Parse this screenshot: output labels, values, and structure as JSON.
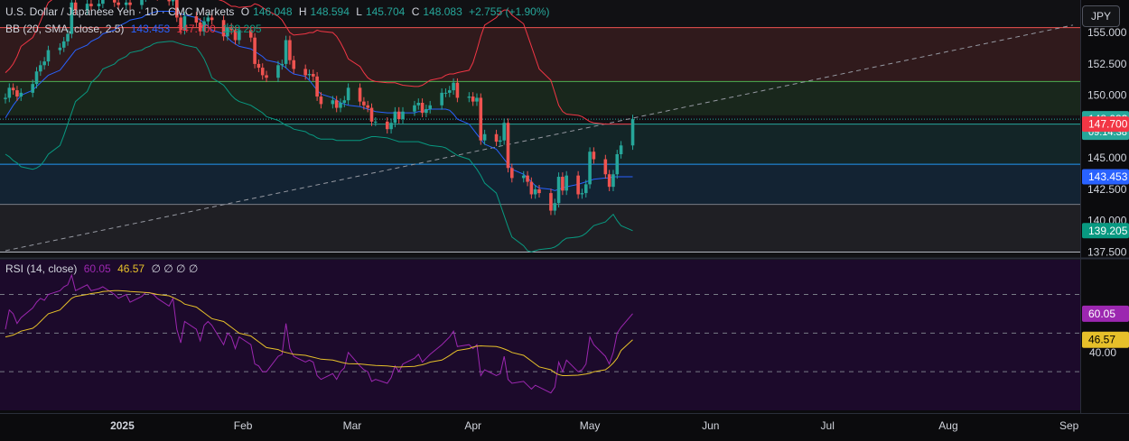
{
  "header": {
    "symbol": "U.S. Dollar / Japanese Yen · 1D · CMC Markets",
    "open_label": "O",
    "open": "146.048",
    "high_label": "H",
    "high": "148.594",
    "low_label": "L",
    "low": "145.704",
    "close_label": "C",
    "close": "148.083",
    "change": "+2.755 (+1.90%)"
  },
  "bb_legend": {
    "label": "BB (20, SMA, close, 2.5)",
    "basis": "143.453",
    "upper": "147.700",
    "lower": "139.205"
  },
  "rsi_legend": {
    "label": "RSI (14, close)",
    "rsi": "60.05",
    "ma": "46.57",
    "extra": "∅ ∅ ∅ ∅"
  },
  "currency": "JPY",
  "colors": {
    "up": "#26a69a",
    "down": "#ef5350",
    "bb_upper": "#f23645",
    "bb_basis": "#2962ff",
    "bb_lower": "#089981",
    "rsi": "#9c27b0",
    "rsi_ma": "#e6c02a",
    "rsi_bg": "#1c0a2b"
  },
  "chart_data": [
    {
      "type": "candlestick",
      "title": "U.S. Dollar / Japanese Yen · 1D · CMC Markets",
      "x_ticks": [
        "2025",
        "Feb",
        "Mar",
        "Apr",
        "May",
        "Jun",
        "Jul",
        "Aug",
        "Sep"
      ],
      "y_ticks": [
        137.5,
        140.0,
        142.5,
        145.0,
        147.5,
        150.0,
        152.5,
        155.0
      ],
      "ylim": [
        137.1,
        157.6
      ],
      "price_labels": [
        "148.083",
        "09:14:38",
        "147.700",
        "143.453",
        "139.205"
      ],
      "x_dates": [
        "2024-12-02",
        "2024-12-03",
        "2024-12-04",
        "2024-12-05",
        "2024-12-06",
        "2024-12-09",
        "2024-12-10",
        "2024-12-11",
        "2024-12-12",
        "2024-12-13",
        "2024-12-16",
        "2024-12-17",
        "2024-12-18",
        "2024-12-19",
        "2024-12-20",
        "2024-12-23",
        "2024-12-24",
        "2024-12-26",
        "2024-12-27",
        "2024-12-30",
        "2024-12-31",
        "2025-01-02",
        "2025-01-03",
        "2025-01-06",
        "2025-01-07",
        "2025-01-08",
        "2025-01-09",
        "2025-01-10",
        "2025-01-13",
        "2025-01-14",
        "2025-01-15",
        "2025-01-16",
        "2025-01-17",
        "2025-01-20",
        "2025-01-21",
        "2025-01-22",
        "2025-01-23",
        "2025-01-24",
        "2025-01-27",
        "2025-01-28",
        "2025-01-29",
        "2025-01-30",
        "2025-01-31",
        "2025-02-03",
        "2025-02-04",
        "2025-02-05",
        "2025-02-06",
        "2025-02-07",
        "2025-02-10",
        "2025-02-11",
        "2025-02-12",
        "2025-02-13",
        "2025-02-14",
        "2025-02-17",
        "2025-02-18",
        "2025-02-19",
        "2025-02-20",
        "2025-02-21",
        "2025-02-24",
        "2025-02-25",
        "2025-02-26",
        "2025-02-27",
        "2025-02-28",
        "2025-03-03",
        "2025-03-04",
        "2025-03-05",
        "2025-03-06",
        "2025-03-07",
        "2025-03-10",
        "2025-03-11",
        "2025-03-12",
        "2025-03-13",
        "2025-03-14",
        "2025-03-17",
        "2025-03-18",
        "2025-03-19",
        "2025-03-20",
        "2025-03-21",
        "2025-03-24",
        "2025-03-25",
        "2025-03-26",
        "2025-03-27",
        "2025-03-28",
        "2025-03-31",
        "2025-04-01",
        "2025-04-02",
        "2025-04-03",
        "2025-04-04",
        "2025-04-07",
        "2025-04-08",
        "2025-04-09",
        "2025-04-10",
        "2025-04-11",
        "2025-04-14",
        "2025-04-15",
        "2025-04-16",
        "2025-04-17",
        "2025-04-18",
        "2025-04-21",
        "2025-04-22",
        "2025-04-23",
        "2025-04-24",
        "2025-04-25",
        "2025-04-28",
        "2025-04-29",
        "2025-04-30",
        "2025-05-01",
        "2025-05-02",
        "2025-05-05",
        "2025-05-06",
        "2025-05-07",
        "2025-05-08",
        "2025-05-09",
        "2025-05-12"
      ],
      "x_axis_end": "2025-09-02",
      "close": [
        149.8,
        150.6,
        150.4,
        149.9,
        150.2,
        150.9,
        151.9,
        152.4,
        152.7,
        153.6,
        153.8,
        154.3,
        154.9,
        157.4,
        156.8,
        157.3,
        157.1,
        157.3,
        157.8,
        157.4,
        157.2,
        157.4,
        157.2,
        157.8,
        158.1,
        158.2,
        158.1,
        157.9,
        157.5,
        157.9,
        156.2,
        155.2,
        156.3,
        155.8,
        155.1,
        155.9,
        156.2,
        156.0,
        154.7,
        155.4,
        155.2,
        154.4,
        155.2,
        154.6,
        152.5,
        152.2,
        151.6,
        151.4,
        152.4,
        152.5,
        154.4,
        152.8,
        152.1,
        151.6,
        151.7,
        151.5,
        149.9,
        149.3,
        149.6,
        149.0,
        149.4,
        149.6,
        150.6,
        149.5,
        149.2,
        149.0,
        147.9,
        147.9,
        147.3,
        147.8,
        148.7,
        148.1,
        148.7,
        149.2,
        149.4,
        148.6,
        148.9,
        149.2,
        150.2,
        150.2,
        150.4,
        151.0,
        149.8,
        149.9,
        149.5,
        149.8,
        146.4,
        146.9,
        146.3,
        146.4,
        147.8,
        144.2,
        143.4,
        143.6,
        143.1,
        142.1,
        142.5,
        142.2,
        140.8,
        141.4,
        143.5,
        142.4,
        143.6,
        142.1,
        142.2,
        142.9,
        145.5,
        144.9,
        143.7,
        142.7,
        143.7,
        145.3,
        146.0,
        148.1
      ],
      "open": [
        149.7,
        149.8,
        150.6,
        150.4,
        149.9,
        150.2,
        150.9,
        151.9,
        152.4,
        152.7,
        153.6,
        153.8,
        154.3,
        154.9,
        157.4,
        156.8,
        157.3,
        157.1,
        157.3,
        157.8,
        157.4,
        157.2,
        157.4,
        157.2,
        157.8,
        158.1,
        158.2,
        158.1,
        157.9,
        157.5,
        157.9,
        156.2,
        155.2,
        156.3,
        155.8,
        155.1,
        155.9,
        156.2,
        156.0,
        154.7,
        155.4,
        155.2,
        154.4,
        155.2,
        154.6,
        152.5,
        152.2,
        151.6,
        151.4,
        152.4,
        152.5,
        154.4,
        152.8,
        152.1,
        151.6,
        151.7,
        151.5,
        149.9,
        149.3,
        149.6,
        149.0,
        149.4,
        149.6,
        150.6,
        149.5,
        149.2,
        149.0,
        147.9,
        147.9,
        147.3,
        147.8,
        148.7,
        148.1,
        148.7,
        149.2,
        149.4,
        148.6,
        148.9,
        149.2,
        150.2,
        150.2,
        150.4,
        151.0,
        149.8,
        149.9,
        149.5,
        149.8,
        146.4,
        146.9,
        146.3,
        146.4,
        147.8,
        144.2,
        143.4,
        143.6,
        143.1,
        142.1,
        142.5,
        142.2,
        140.8,
        141.4,
        143.5,
        142.4,
        143.6,
        142.1,
        142.2,
        142.9,
        145.5,
        144.9,
        143.7,
        142.7,
        143.7,
        145.3,
        146.0
      ],
      "bb_upper": [
        151.8,
        152.1,
        152.5,
        153.1,
        153.9,
        154.6,
        155.2,
        155.9,
        156.7,
        157.4,
        158.1,
        158.6,
        159.0,
        159.4,
        159.8,
        160.2,
        160.6,
        160.8,
        160.6,
        160.1,
        159.6,
        159.2,
        159.0,
        158.9,
        158.8,
        158.8,
        158.9,
        159.0,
        159.0,
        158.9,
        158.8,
        158.6,
        158.4,
        158.3,
        158.2,
        158.1,
        158.0,
        157.8,
        157.5,
        157.3,
        157.1,
        157.1,
        157.0,
        157.1,
        157.3,
        157.2,
        157.0,
        156.8,
        156.3,
        156.0,
        155.5,
        155.0,
        154.8,
        154.9,
        155.0,
        155.0,
        155.2,
        155.1,
        155.0,
        154.7,
        154.2,
        153.6,
        152.9,
        152.3,
        151.8,
        151.4,
        151.2,
        151.1,
        151.0,
        151.0,
        151.0,
        150.9,
        150.8,
        150.7,
        150.7,
        150.8,
        151.0,
        151.2,
        151.4,
        151.6,
        151.7,
        151.7,
        151.8,
        152.0,
        152.6,
        153.6,
        154.7,
        155.6,
        156.2,
        156.6,
        156.8,
        156.8,
        156.4,
        155.7,
        154.8,
        153.9,
        153.0,
        152.1,
        151.2,
        150.2,
        149.2,
        148.7,
        148.5,
        148.4,
        148.3,
        148.1,
        147.9,
        147.8,
        147.7,
        147.7,
        147.7,
        147.7,
        147.7,
        147.7
      ],
      "bb_basis": [
        148.2,
        148.7,
        149.2,
        149.6,
        150.0,
        150.4,
        150.7,
        151.0,
        151.3,
        151.6,
        152.0,
        152.4,
        152.8,
        153.2,
        153.6,
        154.0,
        154.3,
        154.6,
        154.9,
        155.2,
        155.5,
        155.8,
        156.0,
        156.2,
        156.4,
        156.5,
        156.6,
        156.7,
        156.7,
        156.7,
        156.6,
        156.5,
        156.4,
        156.2,
        156.0,
        155.8,
        155.5,
        155.2,
        154.9,
        154.6,
        154.3,
        154.1,
        153.9,
        153.7,
        153.5,
        153.3,
        153.1,
        152.8,
        152.6,
        152.4,
        152.2,
        151.9,
        151.7,
        151.5,
        151.2,
        150.8,
        150.4,
        150.1,
        149.8,
        149.6,
        149.4,
        149.3,
        149.2,
        149.1,
        149.0,
        148.9,
        148.8,
        148.7,
        148.6,
        148.6,
        148.6,
        148.6,
        148.6,
        148.6,
        148.7,
        148.7,
        148.8,
        148.9,
        148.9,
        148.9,
        148.8,
        148.5,
        148.1,
        147.7,
        147.3,
        146.9,
        146.5,
        146.1,
        145.7,
        145.3,
        144.9,
        144.5,
        144.1,
        143.7,
        143.4,
        143.1,
        142.8,
        142.6,
        142.5,
        142.4,
        142.5,
        142.6,
        142.7,
        142.9,
        143.0,
        143.1,
        143.2,
        143.3,
        143.4,
        143.4,
        143.5,
        143.5,
        143.5,
        143.5
      ],
      "bb_lower": [
        145.3,
        145.1,
        144.8,
        144.6,
        144.3,
        144.1,
        144.2,
        144.4,
        144.8,
        145.3,
        146.0,
        146.8,
        147.7,
        148.6,
        149.5,
        150.3,
        151.0,
        151.6,
        152.1,
        152.5,
        152.8,
        153.1,
        153.4,
        153.6,
        153.8,
        153.9,
        154.1,
        154.2,
        154.3,
        154.3,
        154.2,
        154.1,
        154.0,
        153.8,
        153.4,
        152.9,
        152.2,
        151.4,
        150.8,
        150.4,
        150.0,
        149.7,
        149.5,
        149.2,
        149.0,
        148.8,
        148.6,
        148.3,
        148.0,
        147.8,
        147.6,
        147.5,
        147.3,
        147.1,
        146.9,
        146.8,
        146.6,
        146.5,
        146.5,
        146.4,
        146.4,
        146.4,
        146.4,
        146.4,
        146.5,
        146.6,
        146.7,
        146.7,
        146.6,
        146.5,
        146.4,
        146.3,
        146.3,
        146.3,
        146.3,
        146.2,
        146.1,
        146.0,
        145.9,
        145.8,
        145.6,
        145.4,
        145.2,
        144.9,
        144.5,
        144.1,
        143.6,
        143.0,
        142.2,
        141.3,
        140.4,
        139.5,
        138.7,
        138.0,
        137.6,
        137.5,
        137.6,
        137.7,
        137.8,
        137.9,
        138.1,
        138.4,
        138.6,
        138.7,
        138.8,
        139.0,
        139.3,
        139.6,
        139.9,
        140.2,
        140.5,
        140.0,
        139.6,
        139.2
      ],
      "h_zones": [
        {
          "lo": 151.1,
          "hi": 155.4,
          "color": "#ef5350"
        },
        {
          "lo": 148.4,
          "hi": 151.1,
          "color": "#4caf50"
        },
        {
          "lo": 144.5,
          "hi": 147.7,
          "color": "#26a69a"
        },
        {
          "lo": 141.3,
          "hi": 144.5,
          "color": "#2196f3"
        },
        {
          "lo": 137.5,
          "hi": 141.3,
          "color": "#787b86"
        }
      ],
      "trendline": {
        "from": [
          "2024-12-02",
          137.6
        ],
        "to": [
          "2025-09-02",
          155.6
        ]
      }
    },
    {
      "type": "line",
      "title": "RSI (14, close)",
      "y_ticks": [
        40.0
      ],
      "ylim": [
        10,
        88
      ],
      "bands": [
        70,
        50,
        30
      ],
      "price_labels": [
        "60.05",
        "46.57"
      ],
      "series": [
        {
          "name": "RSI",
          "values": [
            52.0,
            62.0,
            60.0,
            55.0,
            58.0,
            63.0,
            66.0,
            68.0,
            67.0,
            70.0,
            72.0,
            74.0,
            75.0,
            80.0,
            72.0,
            75.0,
            72.0,
            73.0,
            74.0,
            70.0,
            68.0,
            70.0,
            66.0,
            69.0,
            71.0,
            71.0,
            70.0,
            68.0,
            64.0,
            68.0,
            52.0,
            45.0,
            56.0,
            52.0,
            46.0,
            54.0,
            56.0,
            54.0,
            44.0,
            50.0,
            48.0,
            42.0,
            48.0,
            44.0,
            34.0,
            33.0,
            30.0,
            30.0,
            38.0,
            39.0,
            55.0,
            42.0,
            38.0,
            35.0,
            36.0,
            35.0,
            28.0,
            26.0,
            29.0,
            26.0,
            30.0,
            32.0,
            40.0,
            33.0,
            31.0,
            30.0,
            25.0,
            26.0,
            24.0,
            27.0,
            33.0,
            30.0,
            34.0,
            37.0,
            39.0,
            35.0,
            37.0,
            39.0,
            44.0,
            46.0,
            48.0,
            51.0,
            43.0,
            44.0,
            42.0,
            44.0,
            28.0,
            31.0,
            28.0,
            29.0,
            38.0,
            26.0,
            24.0,
            25.0,
            23.0,
            21.0,
            23.0,
            22.0,
            19.0,
            22.0,
            35.0,
            30.0,
            36.0,
            30.0,
            31.0,
            34.0,
            48.0,
            44.0,
            38.0,
            34.0,
            40.0,
            50.0,
            53.0,
            60.05
          ]
        },
        {
          "name": "RSI-based MA",
          "values": [
            48.0,
            48.5,
            49.0,
            50.0,
            51.0,
            52.5,
            54.0,
            56.0,
            58.0,
            60.0,
            62.0,
            64.0,
            66.0,
            68.0,
            69.0,
            70.0,
            70.5,
            71.0,
            71.5,
            72.0,
            72.0,
            71.8,
            71.5,
            71.2,
            71.0,
            70.8,
            70.5,
            70.0,
            69.3,
            68.5,
            67.5,
            66.5,
            65.0,
            63.5,
            62.0,
            60.5,
            59.0,
            57.5,
            56.0,
            54.5,
            53.0,
            51.5,
            50.0,
            48.5,
            47.0,
            45.5,
            44.0,
            42.5,
            41.5,
            40.5,
            40.0,
            39.5,
            39.0,
            38.5,
            38.0,
            37.5,
            37.0,
            36.5,
            36.0,
            35.5,
            35.0,
            34.5,
            34.2,
            34.0,
            33.8,
            33.6,
            33.4,
            33.2,
            33.0,
            32.8,
            32.5,
            32.4,
            32.5,
            32.8,
            33.2,
            33.6,
            34.2,
            35.0,
            36.0,
            37.2,
            38.4,
            39.8,
            41.0,
            42.0,
            42.8,
            43.2,
            43.4,
            43.3,
            43.0,
            42.5,
            41.8,
            41.0,
            40.0,
            38.5,
            37.0,
            35.5,
            34.0,
            32.5,
            31.0,
            29.5,
            28.5,
            28.0,
            28.0,
            28.2,
            28.5,
            28.8,
            29.2,
            30.0,
            31.0,
            32.5,
            34.5,
            37.0,
            41.0,
            46.57
          ]
        }
      ]
    }
  ]
}
